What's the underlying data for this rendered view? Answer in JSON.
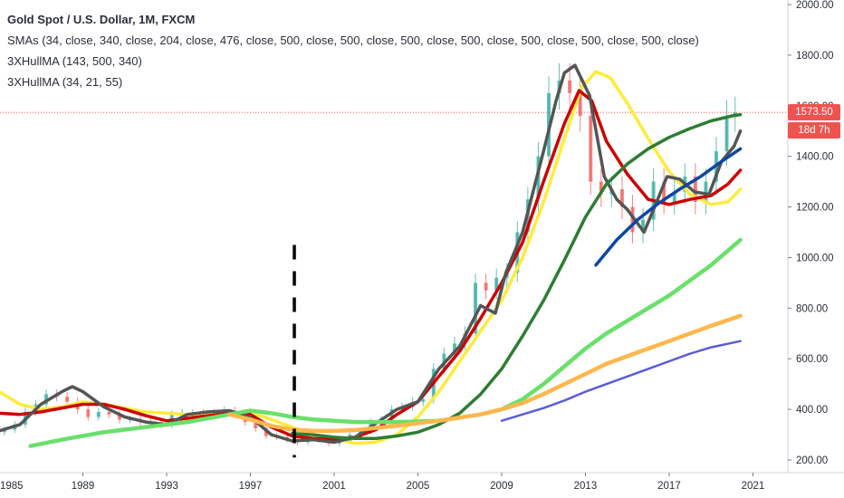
{
  "legend": {
    "title": "Gold Spot / U.S. Dollar, 1M, FXCM",
    "line2": "SMAs (34, close, 340, close, 204, close, 476, close, 500, close, 500, close, 500, close, 500, close, 500, close, 500, close, 500, close)",
    "line3": "3XHullMA (143, 500, 340)",
    "line4": "3XHullMA (34, 21, 55)"
  },
  "price_tag": {
    "value": "1573.50",
    "countdown": "18d 7h",
    "color": "#ef5350"
  },
  "chart_data": {
    "type": "line",
    "x_ticks": [
      "1985",
      "1989",
      "1993",
      "1997",
      "2001",
      "2005",
      "2009",
      "2013",
      "2017",
      "2021"
    ],
    "y_ticks": [
      "200.00",
      "400.00",
      "600.00",
      "800.00",
      "1000.00",
      "1200.00",
      "1400.00",
      "1600.00",
      "1800.00",
      "2000.00"
    ],
    "xlim": [
      1985,
      2021.5
    ],
    "ylim": [
      180,
      2010
    ],
    "current_price": 1573.5,
    "marker_vline": {
      "x": 1999.1,
      "y_range": [
        210,
        1050
      ],
      "color": "#000000"
    },
    "price_candles": {
      "up_color": "#26a69a",
      "down_color": "#ef5350",
      "points": [
        [
          1985.0,
          310
        ],
        [
          1985.5,
          320
        ],
        [
          1986.0,
          340
        ],
        [
          1986.5,
          390
        ],
        [
          1987.0,
          420
        ],
        [
          1987.5,
          460
        ],
        [
          1988.0,
          450
        ],
        [
          1988.5,
          430
        ],
        [
          1989.0,
          400
        ],
        [
          1989.5,
          370
        ],
        [
          1990.0,
          390
        ],
        [
          1990.5,
          380
        ],
        [
          1991.0,
          360
        ],
        [
          1991.5,
          360
        ],
        [
          1992.0,
          350
        ],
        [
          1992.5,
          345
        ],
        [
          1993.0,
          340
        ],
        [
          1993.5,
          380
        ],
        [
          1994.0,
          385
        ],
        [
          1994.5,
          385
        ],
        [
          1995.0,
          380
        ],
        [
          1995.5,
          385
        ],
        [
          1996.0,
          395
        ],
        [
          1996.5,
          385
        ],
        [
          1997.0,
          350
        ],
        [
          1997.5,
          325
        ],
        [
          1998.0,
          295
        ],
        [
          1998.5,
          290
        ],
        [
          1999.0,
          280
        ],
        [
          1999.5,
          270
        ],
        [
          2000.0,
          285
        ],
        [
          2000.5,
          280
        ],
        [
          2001.0,
          265
        ],
        [
          2001.5,
          275
        ],
        [
          2002.0,
          300
        ],
        [
          2002.5,
          315
        ],
        [
          2003.0,
          350
        ],
        [
          2003.5,
          360
        ],
        [
          2004.0,
          400
        ],
        [
          2004.5,
          410
        ],
        [
          2005.0,
          430
        ],
        [
          2005.5,
          440
        ],
        [
          2006.0,
          560
        ],
        [
          2006.5,
          620
        ],
        [
          2007.0,
          660
        ],
        [
          2007.5,
          700
        ],
        [
          2008.0,
          900
        ],
        [
          2008.5,
          870
        ],
        [
          2009.0,
          920
        ],
        [
          2009.5,
          940
        ],
        [
          2010.0,
          1100
        ],
        [
          2010.5,
          1230
        ],
        [
          2011.0,
          1400
        ],
        [
          2011.5,
          1650
        ],
        [
          2012.0,
          1700
        ],
        [
          2012.5,
          1650
        ],
        [
          2013.0,
          1560
        ],
        [
          2013.5,
          1300
        ],
        [
          2014.0,
          1250
        ],
        [
          2014.5,
          1270
        ],
        [
          2015.0,
          1200
        ],
        [
          2015.5,
          1100
        ],
        [
          2016.0,
          1150
        ],
        [
          2016.5,
          1300
        ],
        [
          2017.0,
          1220
        ],
        [
          2017.5,
          1260
        ],
        [
          2018.0,
          1320
        ],
        [
          2018.5,
          1220
        ],
        [
          2019.0,
          1300
        ],
        [
          2019.5,
          1420
        ],
        [
          2020.0,
          1560
        ],
        [
          2020.3,
          1573.5
        ]
      ]
    },
    "series": [
      {
        "color": "#ffeb3b",
        "width": 3.5,
        "points": [
          [
            1985,
            470
          ],
          [
            1986,
            420
          ],
          [
            1987,
            400
          ],
          [
            1988,
            410
          ],
          [
            1989,
            430
          ],
          [
            1990,
            420
          ],
          [
            1992,
            390
          ],
          [
            1994,
            380
          ],
          [
            1996,
            390
          ],
          [
            1997.5,
            375
          ],
          [
            1999,
            330
          ],
          [
            2000,
            300
          ],
          [
            2001,
            285
          ],
          [
            2002,
            265
          ],
          [
            2003,
            270
          ],
          [
            2004,
            300
          ],
          [
            2005,
            370
          ],
          [
            2006,
            470
          ],
          [
            2007,
            590
          ],
          [
            2008,
            710
          ],
          [
            2009,
            830
          ],
          [
            2010,
            1000
          ],
          [
            2011,
            1220
          ],
          [
            2012,
            1470
          ],
          [
            2012.8,
            1670
          ],
          [
            2013.5,
            1735
          ],
          [
            2014.2,
            1710
          ],
          [
            2015,
            1610
          ],
          [
            2016,
            1470
          ],
          [
            2017,
            1340
          ],
          [
            2018,
            1250
          ],
          [
            2019,
            1210
          ],
          [
            2019.8,
            1220
          ],
          [
            2020.4,
            1270
          ]
        ]
      },
      {
        "color": "#cc0000",
        "width": 3.5,
        "points": [
          [
            1985,
            385
          ],
          [
            1986,
            380
          ],
          [
            1987,
            390
          ],
          [
            1988,
            405
          ],
          [
            1989,
            420
          ],
          [
            1990,
            420
          ],
          [
            1991,
            400
          ],
          [
            1992,
            375
          ],
          [
            1993,
            355
          ],
          [
            1994,
            365
          ],
          [
            1995,
            375
          ],
          [
            1996,
            385
          ],
          [
            1997,
            380
          ],
          [
            1998,
            330
          ],
          [
            1999,
            295
          ],
          [
            2000,
            285
          ],
          [
            2001,
            280
          ],
          [
            2002,
            290
          ],
          [
            2003,
            320
          ],
          [
            2004,
            380
          ],
          [
            2005,
            430
          ],
          [
            2006,
            530
          ],
          [
            2007,
            630
          ],
          [
            2008,
            760
          ],
          [
            2009,
            900
          ],
          [
            2010,
            1060
          ],
          [
            2011,
            1300
          ],
          [
            2012,
            1530
          ],
          [
            2012.7,
            1660
          ],
          [
            2013.3,
            1620
          ],
          [
            2014,
            1460
          ],
          [
            2015,
            1330
          ],
          [
            2016,
            1230
          ],
          [
            2017,
            1210
          ],
          [
            2018,
            1230
          ],
          [
            2019,
            1245
          ],
          [
            2019.8,
            1290
          ],
          [
            2020.4,
            1345
          ]
        ]
      },
      {
        "color": "#555555",
        "width": 3.5,
        "points": [
          [
            1985,
            315
          ],
          [
            1986,
            340
          ],
          [
            1987,
            420
          ],
          [
            1988,
            470
          ],
          [
            1988.5,
            490
          ],
          [
            1989,
            470
          ],
          [
            1990,
            410
          ],
          [
            1991,
            370
          ],
          [
            1992,
            350
          ],
          [
            1993,
            340
          ],
          [
            1994,
            380
          ],
          [
            1995,
            390
          ],
          [
            1996,
            395
          ],
          [
            1997,
            370
          ],
          [
            1998,
            300
          ],
          [
            1999,
            275
          ],
          [
            2000,
            280
          ],
          [
            2001,
            270
          ],
          [
            2002,
            290
          ],
          [
            2003,
            345
          ],
          [
            2004,
            400
          ],
          [
            2005,
            430
          ],
          [
            2006,
            560
          ],
          [
            2007,
            650
          ],
          [
            2008,
            810
          ],
          [
            2008.7,
            780
          ],
          [
            2009.2,
            940
          ],
          [
            2010,
            1100
          ],
          [
            2011,
            1420
          ],
          [
            2011.6,
            1620
          ],
          [
            2012,
            1730
          ],
          [
            2012.5,
            1760
          ],
          [
            2013.2,
            1640
          ],
          [
            2013.9,
            1320
          ],
          [
            2014.5,
            1230
          ],
          [
            2015,
            1190
          ],
          [
            2015.8,
            1100
          ],
          [
            2016.3,
            1200
          ],
          [
            2016.9,
            1320
          ],
          [
            2017.5,
            1310
          ],
          [
            2018.2,
            1260
          ],
          [
            2018.9,
            1250
          ],
          [
            2019.5,
            1380
          ],
          [
            2020.1,
            1440
          ],
          [
            2020.4,
            1500
          ]
        ]
      },
      {
        "color": "#2e7d32",
        "width": 3.5,
        "points": [
          [
            1999,
            305
          ],
          [
            2000,
            300
          ],
          [
            2001,
            290
          ],
          [
            2002,
            285
          ],
          [
            2003,
            285
          ],
          [
            2004,
            295
          ],
          [
            2005,
            310
          ],
          [
            2006,
            340
          ],
          [
            2007,
            385
          ],
          [
            2008,
            460
          ],
          [
            2009,
            560
          ],
          [
            2010,
            690
          ],
          [
            2011,
            830
          ],
          [
            2012,
            990
          ],
          [
            2013,
            1160
          ],
          [
            2014,
            1290
          ],
          [
            2015,
            1370
          ],
          [
            2016,
            1430
          ],
          [
            2017,
            1475
          ],
          [
            2018,
            1510
          ],
          [
            2019,
            1540
          ],
          [
            2020,
            1560
          ],
          [
            2020.4,
            1565
          ]
        ]
      },
      {
        "color": "#0d47a1",
        "width": 3.5,
        "points": [
          [
            2013.5,
            970
          ],
          [
            2014.5,
            1070
          ],
          [
            2015.5,
            1150
          ],
          [
            2016.5,
            1215
          ],
          [
            2017.5,
            1270
          ],
          [
            2018.5,
            1320
          ],
          [
            2019.5,
            1380
          ],
          [
            2020.4,
            1430
          ]
        ]
      },
      {
        "color": "#69e06a",
        "width": 4.5,
        "points": [
          [
            1986.5,
            255
          ],
          [
            1988,
            280
          ],
          [
            1990,
            310
          ],
          [
            1992,
            330
          ],
          [
            1994,
            350
          ],
          [
            1996,
            380
          ],
          [
            1997,
            395
          ],
          [
            1998,
            385
          ],
          [
            1999,
            370
          ],
          [
            2000,
            360
          ],
          [
            2002,
            350
          ],
          [
            2004,
            350
          ],
          [
            2006,
            355
          ],
          [
            2008,
            380
          ],
          [
            2009,
            400
          ],
          [
            2010,
            440
          ],
          [
            2011,
            500
          ],
          [
            2012,
            570
          ],
          [
            2013,
            640
          ],
          [
            2014,
            700
          ],
          [
            2015,
            750
          ],
          [
            2016,
            800
          ],
          [
            2017,
            850
          ],
          [
            2018,
            910
          ],
          [
            2019,
            970
          ],
          [
            2020.4,
            1070
          ]
        ]
      },
      {
        "color": "#ffb74d",
        "width": 4.5,
        "points": [
          [
            1996,
            380
          ],
          [
            1997,
            360
          ],
          [
            1998,
            335
          ],
          [
            1999,
            320
          ],
          [
            2000,
            315
          ],
          [
            2001,
            315
          ],
          [
            2002,
            318
          ],
          [
            2004,
            335
          ],
          [
            2006,
            355
          ],
          [
            2008,
            380
          ],
          [
            2009,
            400
          ],
          [
            2010,
            425
          ],
          [
            2011,
            460
          ],
          [
            2012,
            500
          ],
          [
            2013,
            540
          ],
          [
            2014,
            580
          ],
          [
            2015,
            610
          ],
          [
            2016,
            640
          ],
          [
            2017,
            670
          ],
          [
            2018,
            700
          ],
          [
            2019,
            730
          ],
          [
            2020.4,
            770
          ]
        ]
      },
      {
        "color": "#5c5cdb",
        "width": 2.5,
        "points": [
          [
            2009,
            355
          ],
          [
            2010,
            380
          ],
          [
            2011,
            405
          ],
          [
            2012,
            435
          ],
          [
            2013,
            470
          ],
          [
            2014,
            500
          ],
          [
            2015,
            530
          ],
          [
            2016,
            560
          ],
          [
            2017,
            590
          ],
          [
            2018,
            620
          ],
          [
            2019,
            645
          ],
          [
            2020.4,
            670
          ]
        ]
      }
    ]
  }
}
